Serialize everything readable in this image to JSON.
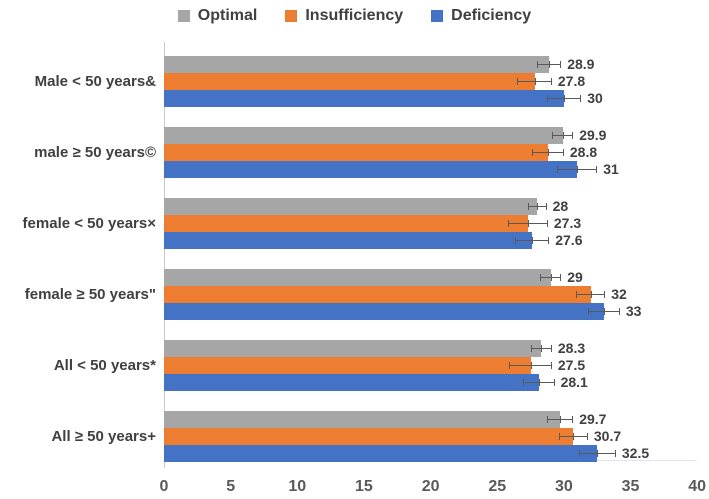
{
  "legend": [
    {
      "label": "Optimal",
      "color": "#a6a6a6"
    },
    {
      "label": "Insufficiency",
      "color": "#ed7d31"
    },
    {
      "label": "Deficiency",
      "color": "#4472c4"
    }
  ],
  "chart_data": {
    "type": "bar",
    "orientation": "horizontal",
    "title": "",
    "xlabel": "",
    "ylabel": "",
    "grid": false,
    "legend_position": "top",
    "xlim": [
      0,
      40
    ],
    "xticks": [
      "0",
      "5",
      "10",
      "15",
      "20",
      "25",
      "30",
      "35",
      "40"
    ],
    "categories": [
      "Male < 50 years&",
      "male ≥ 50 years©",
      "female < 50 years×",
      "female ≥ 50 years\"",
      "All < 50 years*",
      "All ≥ 50 years+"
    ],
    "series": [
      {
        "name": "Optimal",
        "color": "#a6a6a6",
        "values": [
          28.9,
          29.9,
          28,
          29,
          28.3,
          29.7
        ],
        "labels": [
          "28.9",
          "29.9",
          "28",
          "29",
          "28.3",
          "29.7"
        ],
        "errors": [
          0.9,
          0.8,
          0.7,
          0.8,
          0.8,
          1.0
        ]
      },
      {
        "name": "Insufficiency",
        "color": "#ed7d31",
        "values": [
          27.8,
          28.8,
          27.3,
          32,
          27.5,
          30.7
        ],
        "labels": [
          "27.8",
          "28.8",
          "27.3",
          "32",
          "27.5",
          "30.7"
        ],
        "errors": [
          1.3,
          1.2,
          1.5,
          1.1,
          1.6,
          1.1
        ]
      },
      {
        "name": "Deficiency",
        "color": "#4472c4",
        "values": [
          30,
          31,
          27.6,
          33,
          28.1,
          32.5
        ],
        "labels": [
          "30",
          "31",
          "27.6",
          "33",
          "28.1",
          "32.5"
        ],
        "errors": [
          1.3,
          1.5,
          1.3,
          1.2,
          1.2,
          1.4
        ]
      }
    ],
    "error_bars": true
  }
}
